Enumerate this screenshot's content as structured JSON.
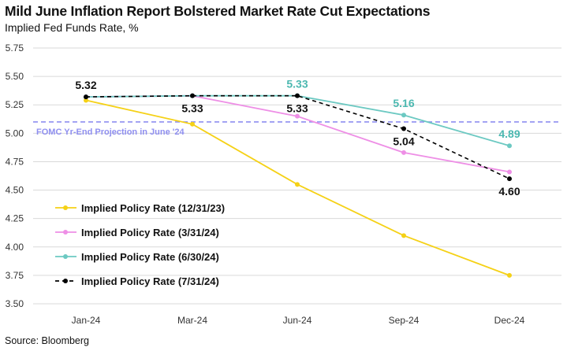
{
  "title": "Mild June Inflation Report Bolstered Market Rate Cut Expectations",
  "subtitle": "Implied Fed Funds Rate, %",
  "source": "Source: Bloomberg",
  "chart_data": {
    "type": "line",
    "title": "Mild June Inflation Report Bolstered Market Rate Cut Expectations",
    "ylabel": "Implied Fed Funds Rate, %",
    "xlabel": "",
    "categories": [
      "Jan-24",
      "Mar-24",
      "Jun-24",
      "Sep-24",
      "Dec-24"
    ],
    "ylim": [
      3.5,
      5.75
    ],
    "yticks": [
      3.5,
      3.75,
      4.0,
      4.25,
      4.5,
      4.75,
      5.0,
      5.25,
      5.5,
      5.75
    ],
    "ytick_labels": [
      "3.50",
      "3.75",
      "4.00",
      "4.25",
      "4.50",
      "4.75",
      "5.00",
      "5.25",
      "5.50",
      "5.75"
    ],
    "grid": true,
    "reference_line": {
      "label": "FOMC Yr-End Projection in June '24",
      "value": 5.1,
      "color": "#8f8ff0"
    },
    "legend_position": "bottom-left",
    "series": [
      {
        "name": "Implied Policy Rate (12/31/23)",
        "color": "#f5d116",
        "dashed": false,
        "values": [
          5.29,
          5.08,
          4.55,
          4.1,
          3.75
        ]
      },
      {
        "name": "Implied Policy Rate (3/31/24)",
        "color": "#ee8fe6",
        "dashed": false,
        "values": [
          5.32,
          5.33,
          5.15,
          4.83,
          4.66
        ]
      },
      {
        "name": "Implied Policy Rate (6/30/24)",
        "color": "#6cc9c2",
        "dashed": false,
        "values": [
          5.32,
          5.33,
          5.33,
          5.16,
          4.89
        ]
      },
      {
        "name": "Implied Policy Rate (7/31/24)",
        "color": "#000000",
        "dashed": true,
        "values": [
          5.32,
          5.33,
          5.33,
          5.04,
          4.6
        ]
      }
    ],
    "annotations": [
      {
        "text": "5.32",
        "category": "Jan-24",
        "value": 5.32,
        "color": "#111111",
        "placement": "above"
      },
      {
        "text": "5.33",
        "category": "Mar-24",
        "value": 5.33,
        "color": "#111111",
        "placement": "below"
      },
      {
        "text": "5.33",
        "category": "Jun-24",
        "value": 5.33,
        "color": "#4bb8b0",
        "placement": "above"
      },
      {
        "text": "5.33",
        "category": "Jun-24",
        "value": 5.33,
        "color": "#111111",
        "placement": "below"
      },
      {
        "text": "5.16",
        "category": "Sep-24",
        "value": 5.16,
        "color": "#4bb8b0",
        "placement": "above"
      },
      {
        "text": "5.04",
        "category": "Sep-24",
        "value": 5.04,
        "color": "#111111",
        "placement": "below"
      },
      {
        "text": "4.89",
        "category": "Dec-24",
        "value": 4.89,
        "color": "#4bb8b0",
        "placement": "above"
      },
      {
        "text": "4.60",
        "category": "Dec-24",
        "value": 4.6,
        "color": "#111111",
        "placement": "below"
      }
    ]
  }
}
